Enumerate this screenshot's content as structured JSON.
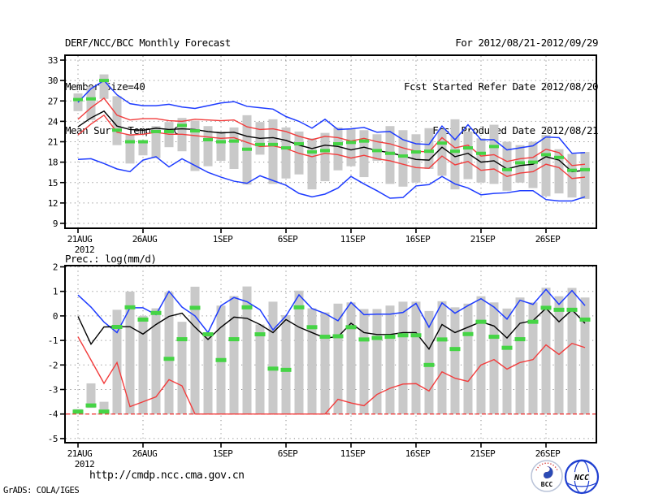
{
  "header": {
    "left": [
      "DERF/NCC/BCC Monthly Forecast",
      "Member Size=40",
      "Mean Surf. Temp.: °C"
    ],
    "right": [
      "For 2012/08/21-2012/09/29",
      "Fcst Started Refer Date 2012/08/20",
      "Fcst Produced Date 2012/08/21"
    ]
  },
  "precip_title": "Prec.: log(mm/d)",
  "footer": {
    "url": "http://cmdp.ncc.cma.gov.cn",
    "credit": "GrADS: COLA/IGES",
    "logos": [
      {
        "label": "BCC"
      },
      {
        "label": "NCC"
      }
    ]
  },
  "colors": {
    "blue": "#1e3cff",
    "red": "#f23c3c",
    "green": "#45d445",
    "gray_bar": "#c9c9c9",
    "black": "#000000"
  },
  "chart_data": [
    {
      "type": "line",
      "title": "Mean Surf. Temp.: °C",
      "xlabel": "",
      "ylabel": "",
      "ylim": [
        9,
        33
      ],
      "grid": true,
      "legend": "none",
      "y_ticks": [
        9,
        12,
        15,
        18,
        21,
        24,
        27,
        30,
        33
      ],
      "x_ticks": [
        {
          "day": 0,
          "label": "21AUG",
          "sub": "2012"
        },
        {
          "day": 5,
          "label": "26AUG"
        },
        {
          "day": 11,
          "label": "1SEP"
        },
        {
          "day": 16,
          "label": "6SEP"
        },
        {
          "day": 21,
          "label": "11SEP"
        },
        {
          "day": 26,
          "label": "16SEP"
        },
        {
          "day": 31,
          "label": "21SEP"
        },
        {
          "day": 36,
          "label": "26SEP"
        }
      ],
      "bars_low": [
        25.5,
        24.2,
        27.3,
        20.5,
        17.8,
        19.0,
        18.6,
        20.2,
        19.6,
        16.7,
        17.4,
        18.2,
        17.0,
        14.7,
        19.1,
        14.8,
        15.6,
        16.2,
        14.0,
        15.2,
        16.8,
        17.4,
        15.8,
        18.2,
        14.8,
        14.4,
        15.0,
        17.0,
        16.0,
        14.0,
        15.5,
        15.0,
        14.8,
        13.8,
        15.0,
        14.2,
        13.0,
        13.4,
        12.8,
        12.6
      ],
      "bars_high": [
        28.1,
        29.1,
        30.9,
        27.7,
        22.1,
        21.2,
        23.3,
        23.9,
        24.5,
        24.1,
        23.3,
        22.5,
        23.1,
        24.9,
        23.9,
        24.3,
        23.1,
        22.5,
        21.5,
        22.3,
        23.1,
        22.9,
        22.7,
        22.1,
        23.3,
        22.7,
        22.1,
        23.0,
        22.8,
        24.3,
        22.5,
        21.5,
        23.5,
        21.0,
        20.5,
        21.0,
        22.0,
        19.9,
        19.2,
        19.5
      ],
      "green_marks": [
        27.2,
        27.3,
        30.0,
        22.7,
        21.0,
        21.0,
        22.5,
        22.5,
        23.4,
        22.6,
        21.3,
        21.0,
        21.1,
        19.9,
        20.6,
        20.6,
        20.1,
        20.7,
        19.5,
        19.7,
        20.7,
        20.9,
        21.1,
        19.7,
        19.3,
        18.9,
        19.5,
        19.6,
        20.8,
        19.6,
        20.1,
        19.3,
        20.3,
        16.9,
        17.9,
        18.0,
        19.1,
        18.7,
        16.8,
        16.9
      ],
      "series": [
        {
          "name": "blue_upper",
          "color": "blue",
          "values": [
            26.8,
            28.8,
            30.0,
            27.9,
            26.6,
            26.3,
            26.3,
            26.5,
            26.1,
            25.9,
            26.3,
            26.7,
            26.9,
            26.2,
            26.0,
            25.8,
            24.7,
            24.0,
            23.0,
            24.3,
            22.8,
            22.9,
            23.1,
            22.4,
            22.5,
            21.3,
            20.7,
            20.6,
            23.3,
            21.3,
            23.5,
            21.3,
            21.3,
            19.8,
            20.1,
            20.4,
            21.7,
            21.6,
            19.3,
            19.4
          ]
        },
        {
          "name": "red_upper",
          "color": "red",
          "values": [
            24.3,
            26.0,
            27.4,
            24.9,
            24.2,
            24.4,
            24.4,
            24.1,
            24.0,
            24.3,
            24.2,
            24.1,
            24.2,
            23.2,
            22.8,
            22.9,
            22.5,
            21.8,
            21.3,
            21.8,
            21.6,
            21.1,
            21.5,
            21.0,
            20.7,
            20.1,
            19.6,
            19.5,
            21.6,
            20.1,
            20.5,
            18.9,
            19.1,
            18.1,
            18.5,
            18.7,
            19.9,
            19.4,
            17.5,
            17.7
          ]
        },
        {
          "name": "black_mean",
          "color": "black",
          "values": [
            23.2,
            24.5,
            25.5,
            23.3,
            22.8,
            22.7,
            23.0,
            22.8,
            22.9,
            22.8,
            22.5,
            22.3,
            22.4,
            21.8,
            21.5,
            21.6,
            21.2,
            20.5,
            20.0,
            20.5,
            20.3,
            19.8,
            20.2,
            19.7,
            19.4,
            18.9,
            18.4,
            18.3,
            20.2,
            18.8,
            19.3,
            18.0,
            18.2,
            17.0,
            17.5,
            17.7,
            18.8,
            18.3,
            16.6,
            16.8
          ]
        },
        {
          "name": "red_lower",
          "color": "red",
          "values": [
            22.0,
            23.6,
            24.9,
            22.4,
            22.0,
            22.1,
            22.4,
            22.1,
            22.1,
            21.9,
            21.7,
            21.5,
            21.6,
            20.9,
            20.3,
            20.4,
            20.0,
            19.3,
            18.8,
            19.3,
            19.1,
            18.6,
            19.0,
            18.5,
            18.2,
            17.7,
            17.2,
            17.1,
            18.9,
            17.6,
            18.1,
            16.8,
            17.0,
            15.9,
            16.4,
            16.6,
            17.7,
            17.2,
            15.6,
            15.8
          ]
        },
        {
          "name": "blue_lower",
          "color": "blue",
          "values": [
            18.4,
            18.5,
            17.8,
            17.0,
            16.6,
            18.3,
            18.8,
            17.3,
            18.5,
            17.5,
            16.5,
            15.8,
            15.2,
            14.9,
            16.0,
            15.3,
            14.6,
            13.4,
            12.9,
            13.3,
            14.2,
            15.9,
            14.8,
            13.8,
            12.7,
            12.8,
            14.5,
            14.7,
            15.9,
            14.8,
            14.2,
            13.2,
            13.4,
            13.5,
            13.8,
            13.8,
            12.5,
            12.3,
            12.3,
            12.9
          ]
        }
      ]
    },
    {
      "type": "line",
      "title": "Prec.: log(mm/d)",
      "xlabel": "",
      "ylabel": "",
      "ylim": [
        -5,
        2
      ],
      "grid": true,
      "legend": "none",
      "y_ticks": [
        -5,
        -4,
        -3,
        -2,
        -1,
        0,
        1,
        2
      ],
      "x_ticks": [
        {
          "day": 0,
          "label": "21AUG",
          "sub": "2012"
        },
        {
          "day": 5,
          "label": "26AUG"
        },
        {
          "day": 11,
          "label": "1SEP"
        },
        {
          "day": 16,
          "label": "6SEP"
        },
        {
          "day": 21,
          "label": "11SEP"
        },
        {
          "day": 26,
          "label": "16SEP"
        },
        {
          "day": 31,
          "label": "21SEP"
        },
        {
          "day": 36,
          "label": "26SEP"
        }
      ],
      "baseline": -4,
      "bars_low": [
        -4.0,
        -3.75,
        -4.0,
        -4.0,
        -4.0,
        -4.0,
        -4.0,
        -4.0,
        -4.0,
        -4.0,
        -4.0,
        -4.0,
        -4.0,
        -4.0,
        -4.0,
        -4.0,
        -4.0,
        -4.0,
        -4.0,
        -4.0,
        -4.0,
        -4.0,
        -4.0,
        -4.0,
        -4.0,
        -4.0,
        -4.0,
        -4.0,
        -4.0,
        -4.0,
        -4.0,
        -4.0,
        -4.0,
        -4.0,
        -4.0,
        -4.0,
        -4.0,
        -4.0,
        -4.0,
        -4.0
      ],
      "bars_high": [
        -3.8,
        -2.75,
        -3.5,
        0.25,
        0.99,
        0.0,
        0.31,
        0.97,
        -0.24,
        1.19,
        -0.68,
        0.42,
        0.81,
        1.2,
        -0.35,
        0.58,
        0.03,
        1.03,
        0.31,
        0.14,
        0.5,
        0.55,
        0.28,
        0.28,
        0.42,
        0.58,
        0.58,
        0.2,
        0.6,
        0.35,
        0.5,
        0.8,
        0.55,
        0.3,
        0.75,
        0.55,
        1.15,
        0.8,
        1.14,
        0.75
      ],
      "green_marks": [
        -3.9,
        -3.65,
        -3.9,
        -0.45,
        0.35,
        -0.15,
        0.12,
        -1.75,
        -0.95,
        0.33,
        -0.75,
        -1.8,
        -0.95,
        0.35,
        -0.75,
        -2.15,
        -2.2,
        0.35,
        -0.46,
        -0.85,
        -0.83,
        -0.46,
        -0.96,
        -0.9,
        -0.85,
        -0.79,
        -0.79,
        -2.0,
        -0.96,
        -1.35,
        -0.74,
        -0.24,
        -0.85,
        -1.3,
        -0.95,
        -0.24,
        0.33,
        0.25,
        0.25,
        -0.15
      ],
      "series": [
        {
          "name": "blue_upper",
          "color": "blue",
          "values": [
            0.85,
            0.36,
            -0.25,
            -0.68,
            0.33,
            0.33,
            0.05,
            1.0,
            0.36,
            0.0,
            -0.68,
            0.42,
            0.75,
            0.58,
            0.25,
            -0.57,
            0.0,
            0.86,
            0.3,
            0.1,
            -0.2,
            0.55,
            0.05,
            0.07,
            0.07,
            0.14,
            0.51,
            -0.46,
            0.53,
            0.11,
            0.42,
            0.7,
            0.36,
            -0.13,
            0.64,
            0.47,
            1.08,
            0.47,
            1.03,
            0.42
          ]
        },
        {
          "name": "black_mean",
          "color": "black",
          "values": [
            -0.02,
            -1.15,
            -0.45,
            -0.44,
            -0.44,
            -0.74,
            -0.35,
            -0.02,
            0.11,
            -0.46,
            -0.96,
            -0.46,
            -0.05,
            -0.1,
            -0.35,
            -0.68,
            -0.15,
            -0.46,
            -0.68,
            -0.9,
            -0.85,
            -0.3,
            -0.68,
            -0.76,
            -0.76,
            -0.68,
            -0.68,
            -1.35,
            -0.35,
            -0.68,
            -0.46,
            -0.24,
            -0.41,
            -0.9,
            -0.3,
            -0.19,
            0.31,
            -0.24,
            0.25,
            -0.3
          ]
        },
        {
          "name": "red_lower",
          "color": "red",
          "values": [
            -0.85,
            -1.8,
            -2.75,
            -1.9,
            -3.7,
            -3.5,
            -3.3,
            -2.6,
            -2.85,
            -4.0,
            -4.0,
            -4.0,
            -4.0,
            -4.0,
            -4.0,
            -4.0,
            -4.0,
            -4.0,
            -4.0,
            -4.0,
            -3.4,
            -3.55,
            -3.66,
            -3.2,
            -2.95,
            -2.78,
            -2.76,
            -3.06,
            -2.28,
            -2.54,
            -2.67,
            -2.0,
            -1.78,
            -2.17,
            -1.9,
            -1.78,
            -1.18,
            -1.57,
            -1.12,
            -1.29
          ]
        }
      ]
    }
  ]
}
